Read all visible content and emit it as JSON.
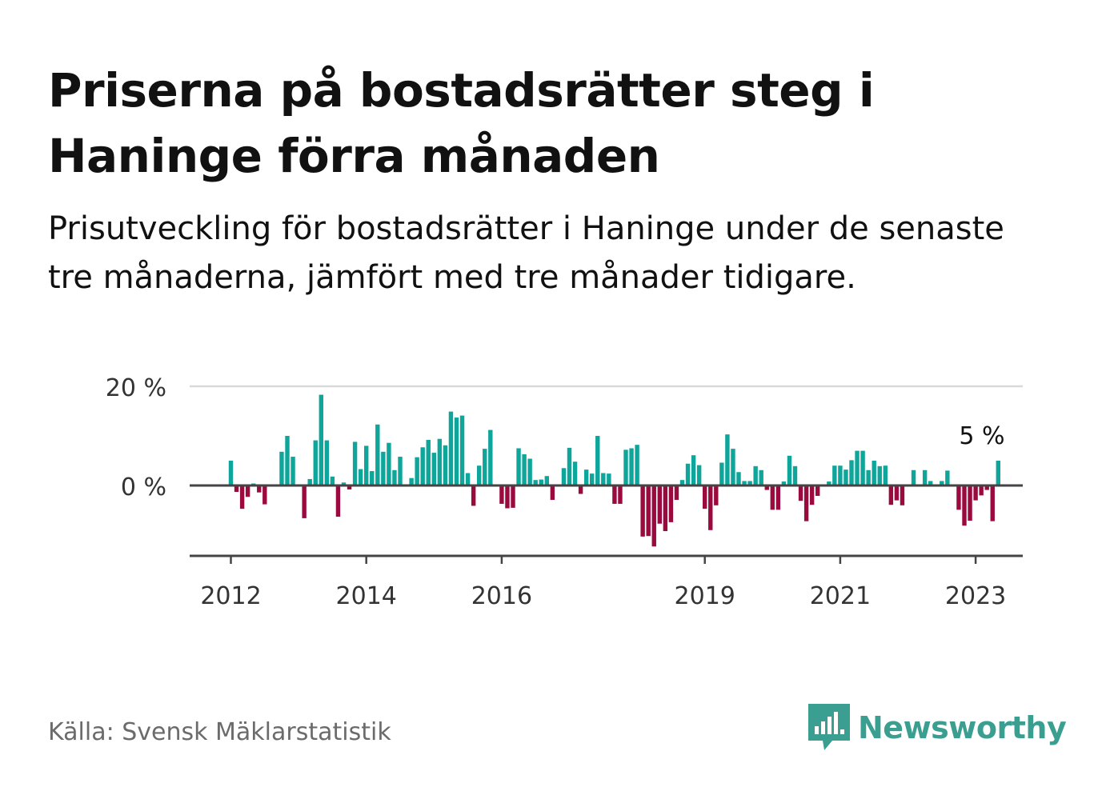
{
  "title": "Priserna på bostadsrätter steg i Haninge förra månaden",
  "subtitle": "Prisutveckling för bostadsrätter i Haninge under de senaste tre månaderna, jämfört med tre månader tidigare.",
  "source": "Källa: Svensk Mäklarstatistik",
  "brand": {
    "name": "Newsworthy",
    "icon": "newsworthy-logo-icon",
    "color": "#3a9e90"
  },
  "colors": {
    "positive": "#0ea59a",
    "negative": "#9b0a3f",
    "grid": "#d9d9d9",
    "axis": "#444444"
  },
  "chart_data": {
    "type": "bar",
    "title": "Priserna på bostadsrätter steg i Haninge förra månaden",
    "subtitle": "Prisutveckling för bostadsrätter i Haninge under de senaste tre månaderna, jämfört med tre månader tidigare.",
    "xlabel": "",
    "ylabel": "",
    "unit": "%",
    "ylim": [
      -14,
      20
    ],
    "yticks": [
      0,
      20
    ],
    "ytick_labels": [
      "0 %",
      "20 %"
    ],
    "xticks": [
      "2012",
      "2014",
      "2016",
      "2019",
      "2021",
      "2023"
    ],
    "grid": "horizontal",
    "annotation": {
      "label": "5 %",
      "value": 5
    },
    "start": "2012-01",
    "series": [
      {
        "values": [
          5,
          -1.3,
          -4.7,
          -2.3,
          0.4,
          -1.4,
          -3.8,
          0,
          0,
          6.8,
          10,
          5.8,
          0,
          -6.6,
          1.3,
          9.1,
          18.3,
          9.1,
          1.8,
          -6.3,
          0.6,
          -0.8,
          8.8,
          3.3,
          8,
          2.9,
          12.3,
          6.8,
          8.6,
          3.1,
          5.8,
          0,
          1.5,
          5.7,
          7.7,
          9.2,
          6.6,
          9.4,
          8.1,
          14.9,
          13.7,
          14.1,
          2.5,
          -4.1,
          4,
          7.4,
          11.2,
          0,
          -3.7,
          -4.6,
          -4.5,
          7.5,
          6.3,
          5.4,
          1.1,
          1.2,
          1.9,
          -2.9,
          0,
          3.5,
          7.6,
          4.8,
          -1.7,
          3.2,
          2.4,
          10,
          2.5,
          2.4,
          -3.7,
          -3.7,
          7.2,
          7.5,
          8.2,
          -10.3,
          -10.2,
          -12.3,
          -7.7,
          -9.2,
          -7.4,
          -2.9,
          1.1,
          4.4,
          6.1,
          4.1,
          -4.7,
          -9,
          -4,
          4.6,
          10.3,
          7.4,
          2.7,
          0.9,
          0.9,
          3.9,
          3.1,
          -0.9,
          -4.9,
          -4.9,
          0.8,
          6,
          3.9,
          -3.1,
          -7.2,
          -3.9,
          -2.1,
          0,
          0.8,
          4,
          4,
          3.2,
          5.1,
          7,
          7,
          3.1,
          5,
          3.9,
          4,
          -3.9,
          -3,
          -4,
          0,
          3.1,
          0,
          3.1,
          0.9,
          0,
          0.9,
          3,
          0,
          -4.9,
          -8.1,
          -7.1,
          -3,
          -2,
          -0.9,
          -7.2,
          5
        ]
      }
    ]
  }
}
